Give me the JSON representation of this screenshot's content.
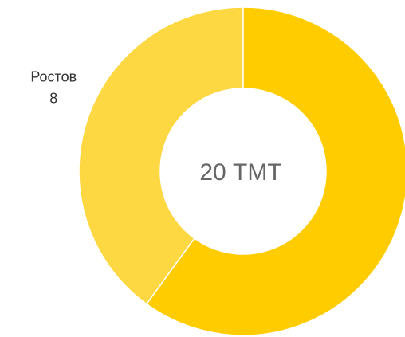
{
  "chart_data": {
    "type": "donut",
    "center_label": "20 ТМТ",
    "categories": [
      null,
      "Ростов"
    ],
    "values": [
      12,
      8
    ],
    "colors": [
      "#ffcc00",
      "#fdd843"
    ]
  }
}
